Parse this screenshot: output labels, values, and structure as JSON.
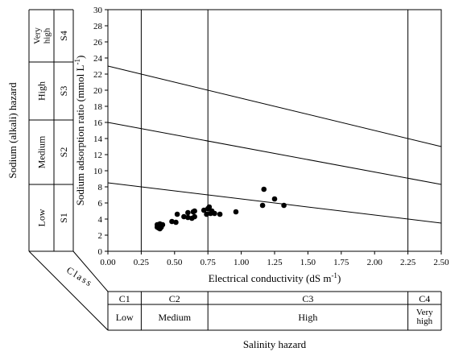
{
  "chart_data": {
    "type": "scatter",
    "title": "",
    "xlabel": "Electrical conductivity (dS m",
    "xlabel_sup": "-1",
    "xlabel_close": ")",
    "ylabel": "Sodium adsorption ratio (mmol L",
    "ylabel_sup": "-1",
    "ylabel_close": ")",
    "xlim": [
      0,
      2.5
    ],
    "ylim": [
      0,
      30
    ],
    "x_ticks": [
      "0.00",
      "0.25",
      "0.50",
      "0.75",
      "1.00",
      "1.25",
      "1.50",
      "1.75",
      "2.00",
      "2.25",
      "2.50"
    ],
    "y_ticks": [
      "0",
      "2",
      "4",
      "6",
      "8",
      "10",
      "12",
      "14",
      "16",
      "18",
      "20",
      "22",
      "24",
      "26",
      "28",
      "30"
    ],
    "grid": false,
    "boundary_lines": [
      {
        "from": [
          0,
          8.5
        ],
        "to": [
          2.5,
          3.5
        ]
      },
      {
        "from": [
          0,
          16.0
        ],
        "to": [
          2.5,
          8.3
        ]
      },
      {
        "from": [
          0,
          23.0
        ],
        "to": [
          2.5,
          13.0
        ]
      }
    ],
    "vertical_dividers": [
      0.25,
      0.75,
      2.25
    ],
    "points": [
      {
        "x": 0.37,
        "y": 3.3
      },
      {
        "x": 0.38,
        "y": 2.9
      },
      {
        "x": 0.38,
        "y": 3.1
      },
      {
        "x": 0.39,
        "y": 3.4
      },
      {
        "x": 0.4,
        "y": 3.0
      },
      {
        "x": 0.39,
        "y": 2.8
      },
      {
        "x": 0.41,
        "y": 3.3
      },
      {
        "x": 0.37,
        "y": 3.0
      },
      {
        "x": 0.48,
        "y": 3.7
      },
      {
        "x": 0.51,
        "y": 3.6
      },
      {
        "x": 0.52,
        "y": 4.6
      },
      {
        "x": 0.57,
        "y": 4.3
      },
      {
        "x": 0.6,
        "y": 4.2
      },
      {
        "x": 0.6,
        "y": 4.8
      },
      {
        "x": 0.63,
        "y": 4.1
      },
      {
        "x": 0.64,
        "y": 4.9
      },
      {
        "x": 0.65,
        "y": 4.3
      },
      {
        "x": 0.65,
        "y": 5.0
      },
      {
        "x": 0.72,
        "y": 5.1
      },
      {
        "x": 0.74,
        "y": 4.6
      },
      {
        "x": 0.75,
        "y": 5.3
      },
      {
        "x": 0.76,
        "y": 5.5
      },
      {
        "x": 0.77,
        "y": 4.7
      },
      {
        "x": 0.78,
        "y": 5.0
      },
      {
        "x": 0.8,
        "y": 4.7
      },
      {
        "x": 0.84,
        "y": 4.6
      },
      {
        "x": 0.96,
        "y": 4.9
      },
      {
        "x": 1.16,
        "y": 5.7
      },
      {
        "x": 1.17,
        "y": 7.7
      },
      {
        "x": 1.25,
        "y": 6.5
      },
      {
        "x": 1.32,
        "y": 5.7
      }
    ]
  },
  "sodium_hazard": {
    "title": "Sodium (alkali) hazard",
    "classes": [
      {
        "code": "S1",
        "label": "Low",
        "from": 0,
        "to": 8.5
      },
      {
        "code": "S2",
        "label": "Medium",
        "from": 8.5,
        "to": 16
      },
      {
        "code": "S3",
        "label": "High",
        "from": 16,
        "to": 23
      },
      {
        "code": "S4",
        "label_lines": [
          "Very",
          "high"
        ],
        "from": 23,
        "to": 30
      }
    ]
  },
  "salinity_hazard": {
    "title": "Salinity hazard",
    "class_word": "Class",
    "classes": [
      {
        "code": "C1",
        "label": "Low",
        "from": 0,
        "to": 0.25
      },
      {
        "code": "C2",
        "label": "Medium",
        "from": 0.25,
        "to": 0.75
      },
      {
        "code": "C3",
        "label": "High",
        "from": 0.75,
        "to": 2.25
      },
      {
        "code": "C4",
        "label_lines": [
          "Very",
          "high"
        ],
        "from": 2.25,
        "to": 2.5
      }
    ]
  }
}
